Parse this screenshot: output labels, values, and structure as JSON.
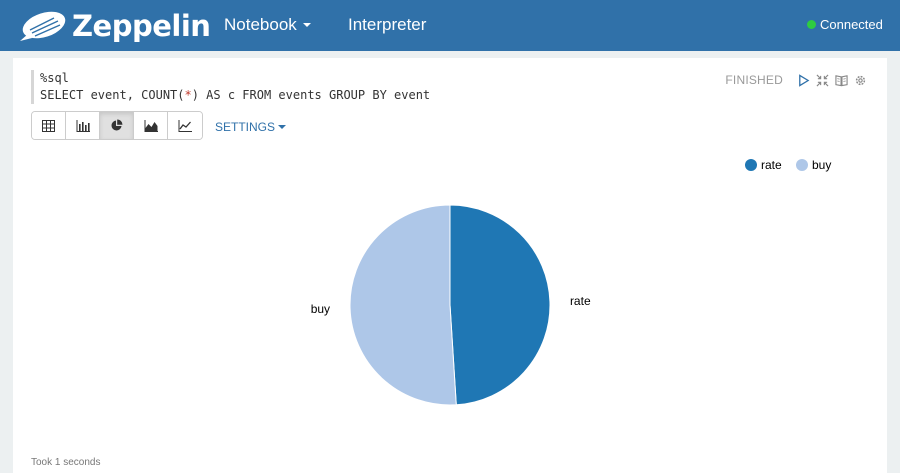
{
  "navbar": {
    "brand": "Zeppelin",
    "notebook_label": "Notebook",
    "interpreter_label": "Interpreter",
    "status_label": "Connected",
    "status_color": "#2ecc40",
    "background": "#3071a9"
  },
  "paragraph": {
    "code_line1": "%sql",
    "code_line2_pre": "SELECT event, COUNT(",
    "code_line2_star": "*",
    "code_line2_post": ") AS c FROM events GROUP BY event",
    "status": "FINISHED",
    "icons": [
      "run-icon",
      "collapse-icon",
      "book-icon",
      "settings-icon"
    ],
    "viz_buttons": [
      "table-icon",
      "bar-chart-icon",
      "pie-chart-icon",
      "area-chart-icon",
      "line-chart-icon"
    ],
    "active_viz": "pie-chart-icon",
    "settings_label": "SETTINGS",
    "took": "Took 1 seconds"
  },
  "chart_data": {
    "type": "pie",
    "categories": [
      "rate",
      "buy"
    ],
    "values": [
      49,
      51
    ],
    "colors": [
      "#1f77b4",
      "#aec7e8"
    ],
    "legend_position": "top-right"
  }
}
